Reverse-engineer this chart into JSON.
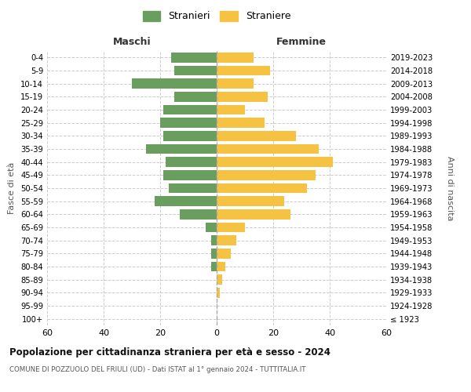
{
  "age_groups": [
    "100+",
    "95-99",
    "90-94",
    "85-89",
    "80-84",
    "75-79",
    "70-74",
    "65-69",
    "60-64",
    "55-59",
    "50-54",
    "45-49",
    "40-44",
    "35-39",
    "30-34",
    "25-29",
    "20-24",
    "15-19",
    "10-14",
    "5-9",
    "0-4"
  ],
  "birth_years": [
    "≤ 1923",
    "1924-1928",
    "1929-1933",
    "1934-1938",
    "1939-1943",
    "1944-1948",
    "1949-1953",
    "1954-1958",
    "1959-1963",
    "1964-1968",
    "1969-1973",
    "1974-1978",
    "1979-1983",
    "1984-1988",
    "1989-1993",
    "1994-1998",
    "1999-2003",
    "2004-2008",
    "2009-2013",
    "2014-2018",
    "2019-2023"
  ],
  "maschi": [
    0,
    0,
    0,
    0,
    2,
    2,
    2,
    4,
    13,
    22,
    17,
    19,
    18,
    25,
    19,
    20,
    19,
    15,
    30,
    15,
    16
  ],
  "femmine": [
    0,
    0,
    1,
    2,
    3,
    5,
    7,
    10,
    26,
    24,
    32,
    35,
    41,
    36,
    28,
    17,
    10,
    18,
    13,
    19,
    13
  ],
  "maschi_color": "#6a9e5f",
  "femmine_color": "#f5c242",
  "background_color": "#ffffff",
  "grid_color": "#cccccc",
  "title": "Popolazione per cittadinanza straniera per età e sesso - 2024",
  "subtitle": "COMUNE DI POZZUOLO DEL FRIULI (UD) - Dati ISTAT al 1° gennaio 2024 - TUTTITALIA.IT",
  "xlabel_left": "Maschi",
  "xlabel_right": "Femmine",
  "ylabel_left": "Fasce di età",
  "ylabel_right": "Anni di nascita",
  "legend_stranieri": "Stranieri",
  "legend_straniere": "Straniere",
  "xlim": 60,
  "dashed_line_color": "#aaaaaa"
}
